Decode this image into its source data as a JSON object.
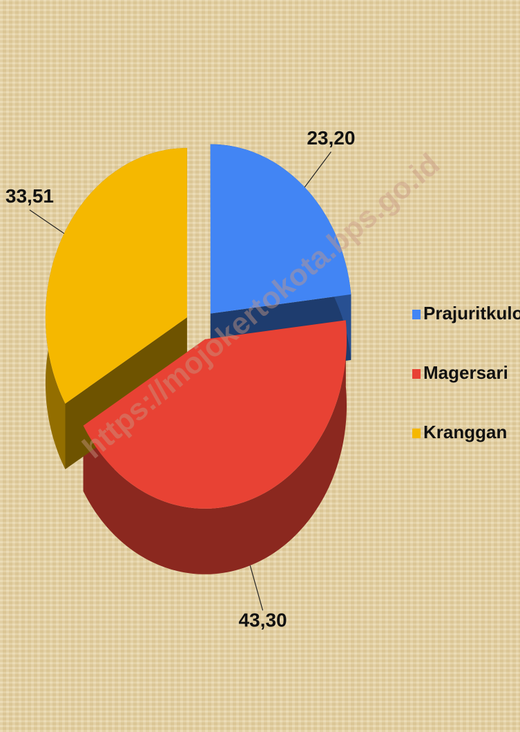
{
  "chart_data": {
    "type": "pie",
    "categories": [
      "Prajuritkulon",
      "Magersari",
      "Kranggan"
    ],
    "values": [
      23.2,
      43.3,
      33.51
    ],
    "value_labels": [
      "23,20",
      "43,30",
      "33,51"
    ],
    "colors": [
      "#4285f4",
      "#e84234",
      "#f5b800"
    ],
    "legend": "right",
    "watermark": "https://mojokertokota.bps.go.id"
  }
}
